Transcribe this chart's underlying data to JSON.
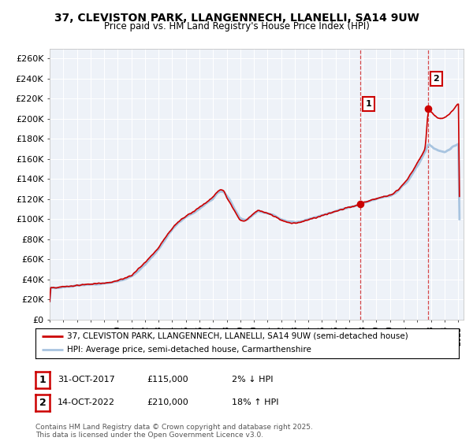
{
  "title": "37, CLEVISTON PARK, LLANGENNECH, LLANELLI, SA14 9UW",
  "subtitle": "Price paid vs. HM Land Registry's House Price Index (HPI)",
  "legend_line1": "37, CLEVISTON PARK, LLANGENNECH, LLANELLI, SA14 9UW (semi-detached house)",
  "legend_line2": "HPI: Average price, semi-detached house, Carmarthenshire",
  "annotation1_label": "1",
  "annotation1_date": "31-OCT-2017",
  "annotation1_price": "£115,000",
  "annotation1_hpi": "2% ↓ HPI",
  "annotation1_year": 2017.83,
  "annotation1_value": 115000,
  "annotation2_label": "2",
  "annotation2_date": "14-OCT-2022",
  "annotation2_price": "£210,000",
  "annotation2_hpi": "18% ↑ HPI",
  "annotation2_year": 2022.79,
  "annotation2_value": 210000,
  "hpi_color": "#a8c4e0",
  "price_color": "#cc0000",
  "vline_color": "#cc0000",
  "background_color": "#ffffff",
  "plot_bg_color": "#eef2f8",
  "grid_color": "#ffffff",
  "ylim": [
    0,
    270000
  ],
  "yticks": [
    0,
    20000,
    40000,
    60000,
    80000,
    100000,
    120000,
    140000,
    160000,
    180000,
    200000,
    220000,
    240000,
    260000
  ],
  "copyright_text": "Contains HM Land Registry data © Crown copyright and database right 2025.\nThis data is licensed under the Open Government Licence v3.0."
}
